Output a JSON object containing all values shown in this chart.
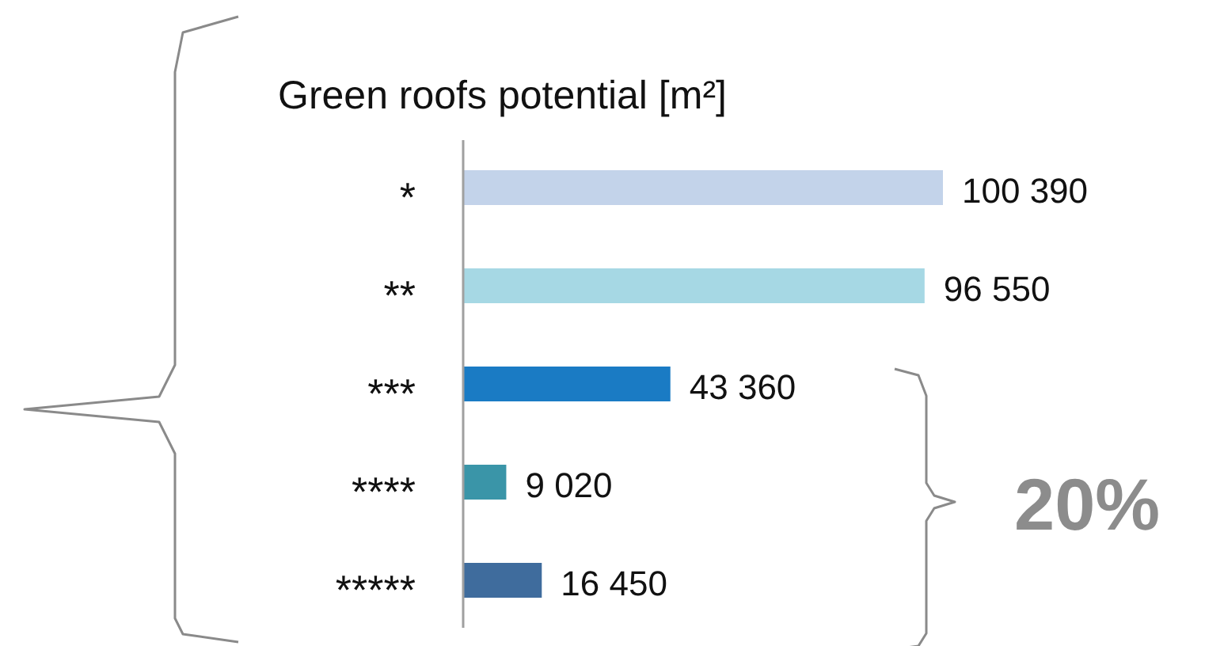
{
  "chart_data": {
    "type": "bar",
    "orientation": "horizontal",
    "title": "Green roofs potential [m²]",
    "categories": [
      "*",
      "**",
      "***",
      "****",
      "*****"
    ],
    "values": [
      100390,
      96550,
      43360,
      9020,
      16450
    ],
    "value_labels": [
      "100 390",
      "96 550",
      "43 360",
      "9 020",
      "16 450"
    ],
    "colors": [
      "#c3d3ea",
      "#a6d8e4",
      "#1a7bc4",
      "#3a95a8",
      "#3f6c9d"
    ],
    "annotations": [
      "20%"
    ]
  }
}
